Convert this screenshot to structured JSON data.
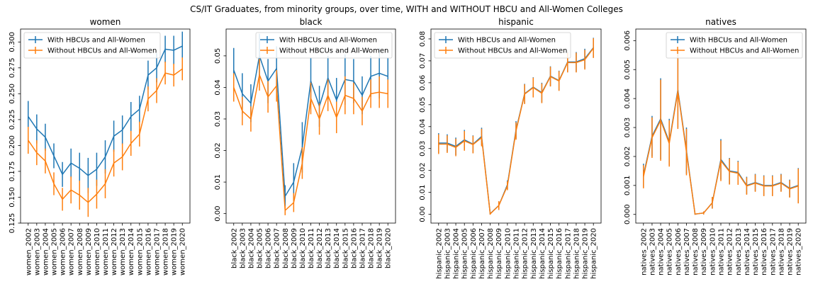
{
  "figure_title": "CS/IT Graduates, from minority groups, over time, WITH and WITHOUT HBCU and All-Women Colleges",
  "colors": {
    "with": "#1f77b4",
    "without": "#ff7f0e"
  },
  "chart_data": [
    {
      "type": "line",
      "title": "women",
      "categories": [
        "women_2002",
        "women_2003",
        "women_2004",
        "women_2005",
        "women_2006",
        "women_2007",
        "women_2008",
        "women_2009",
        "women_2010",
        "women_2011",
        "women_2012",
        "women_2013",
        "women_2014",
        "women_2015",
        "women_2016",
        "women_2017",
        "women_2018",
        "women_2019",
        "women_2020"
      ],
      "ylim": [
        0.125,
        0.3125
      ],
      "yticks": [
        0.125,
        0.15,
        0.175,
        0.2,
        0.225,
        0.25,
        0.275,
        0.3
      ],
      "ytick_labels": [
        "0.125",
        "0.150",
        "0.175",
        "0.200",
        "0.225",
        "0.250",
        "0.275",
        "0.300"
      ],
      "legend": "top-left",
      "series": [
        {
          "name": "With HBCUs and All-Women",
          "values": [
            0.228,
            0.216,
            0.208,
            0.19,
            0.172,
            0.183,
            0.178,
            0.171,
            0.177,
            0.189,
            0.209,
            0.215,
            0.228,
            0.235,
            0.268,
            0.275,
            0.293,
            0.292,
            0.296
          ],
          "errors": [
            0.015,
            0.014,
            0.013,
            0.012,
            0.012,
            0.014,
            0.015,
            0.017,
            0.016,
            0.016,
            0.015,
            0.014,
            0.014,
            0.013,
            0.014,
            0.014,
            0.013,
            0.014,
            0.014
          ]
        },
        {
          "name": "Without HBCUs and All-Women",
          "values": [
            0.205,
            0.193,
            0.185,
            0.163,
            0.148,
            0.157,
            0.152,
            0.145,
            0.153,
            0.163,
            0.183,
            0.189,
            0.202,
            0.211,
            0.245,
            0.253,
            0.27,
            0.268,
            0.274
          ],
          "errors": [
            0.013,
            0.012,
            0.012,
            0.011,
            0.011,
            0.013,
            0.014,
            0.014,
            0.014,
            0.014,
            0.013,
            0.013,
            0.012,
            0.012,
            0.012,
            0.012,
            0.011,
            0.011,
            0.011
          ]
        }
      ]
    },
    {
      "type": "line",
      "title": "black",
      "categories": [
        "black_2002",
        "black_2003",
        "black_2004",
        "black_2005",
        "black_2006",
        "black_2007",
        "black_2008",
        "black_2009",
        "black_2010",
        "black_2011",
        "black_2012",
        "black_2013",
        "black_2014",
        "black_2015",
        "black_2016",
        "black_2017",
        "black_2018",
        "black_2019",
        "black_2020"
      ],
      "ylim": [
        -0.003,
        0.0585
      ],
      "yticks": [
        0.0,
        0.01,
        0.02,
        0.03,
        0.04,
        0.05
      ],
      "ytick_labels": [
        "0.00",
        "0.01",
        "0.02",
        "0.03",
        "0.04",
        "0.05"
      ],
      "legend": "top-right",
      "series": [
        {
          "name": "With HBCUs and All-Women",
          "values": [
            0.0455,
            0.038,
            0.035,
            0.05,
            0.042,
            0.046,
            0.0055,
            0.01,
            0.021,
            0.042,
            0.034,
            0.043,
            0.036,
            0.0425,
            0.042,
            0.0375,
            0.0435,
            0.0445,
            0.0435
          ],
          "errors": [
            0.007,
            0.0065,
            0.006,
            0.007,
            0.007,
            0.007,
            0.0035,
            0.006,
            0.008,
            0.0075,
            0.0065,
            0.007,
            0.007,
            0.008,
            0.007,
            0.006,
            0.0065,
            0.008,
            0.006
          ]
        },
        {
          "name": "Without HBCUs and All-Women",
          "values": [
            0.04,
            0.0325,
            0.03,
            0.044,
            0.037,
            0.0405,
            0.001,
            0.0035,
            0.016,
            0.0365,
            0.03,
            0.0375,
            0.0305,
            0.0375,
            0.0365,
            0.0325,
            0.038,
            0.0385,
            0.038
          ],
          "errors": [
            0.0045,
            0.0045,
            0.004,
            0.005,
            0.005,
            0.005,
            0.0015,
            0.003,
            0.005,
            0.005,
            0.005,
            0.005,
            0.005,
            0.006,
            0.005,
            0.0045,
            0.0045,
            0.005,
            0.0045
          ]
        }
      ]
    },
    {
      "type": "line",
      "title": "hispanic",
      "categories": [
        "hispanic_2002",
        "hispanic_2003",
        "hispanic_2004",
        "hispanic_2005",
        "hispanic_2006",
        "hispanic_2007",
        "hispanic_2008",
        "hispanic_2009",
        "hispanic_2010",
        "hispanic_2011",
        "hispanic_2012",
        "hispanic_2013",
        "hispanic_2014",
        "hispanic_2015",
        "hispanic_2016",
        "hispanic_2017",
        "hispanic_2018",
        "hispanic_2019",
        "hispanic_2020"
      ],
      "ylim": [
        -0.004,
        0.0845
      ],
      "yticks": [
        0.0,
        0.01,
        0.02,
        0.03,
        0.04,
        0.05,
        0.06,
        0.07,
        0.08
      ],
      "ytick_labels": [
        "0.00",
        "0.01",
        "0.02",
        "0.03",
        "0.04",
        "0.05",
        "0.06",
        "0.07",
        "0.08"
      ],
      "legend": "top-left",
      "series": [
        {
          "name": "With HBCUs and All-Women",
          "values": [
            0.0325,
            0.0325,
            0.031,
            0.034,
            0.032,
            0.0355,
            0.0003,
            0.004,
            0.0135,
            0.0385,
            0.055,
            0.058,
            0.0555,
            0.063,
            0.061,
            0.0695,
            0.0695,
            0.071,
            0.076
          ],
          "errors": [
            0.0045,
            0.004,
            0.004,
            0.0045,
            0.004,
            0.004,
            0.0003,
            0.002,
            0.002,
            0.004,
            0.0045,
            0.0045,
            0.0045,
            0.0045,
            0.0045,
            0.0045,
            0.0045,
            0.0045,
            0.0045
          ]
        },
        {
          "name": "Without HBCUs and All-Women",
          "values": [
            0.032,
            0.032,
            0.0305,
            0.0335,
            0.0318,
            0.035,
            0.0002,
            0.004,
            0.013,
            0.038,
            0.0548,
            0.0578,
            0.0552,
            0.0628,
            0.0608,
            0.0692,
            0.0692,
            0.0705,
            0.0758
          ],
          "errors": [
            0.0045,
            0.004,
            0.004,
            0.0045,
            0.004,
            0.004,
            0.0003,
            0.002,
            0.002,
            0.004,
            0.0045,
            0.0045,
            0.0045,
            0.0045,
            0.0045,
            0.0045,
            0.0045,
            0.0045,
            0.0045
          ]
        }
      ]
    },
    {
      "type": "line",
      "title": "natives",
      "categories": [
        "natives_2002",
        "natives_2003",
        "natives_2004",
        "natives_2005",
        "natives_2006",
        "natives_2007",
        "natives_2008",
        "natives_2009",
        "natives_2010",
        "natives_2011",
        "natives_2012",
        "natives_2013",
        "natives_2014",
        "natives_2015",
        "natives_2016",
        "natives_2017",
        "natives_2018",
        "natives_2019",
        "natives_2020"
      ],
      "ylim": [
        -0.0003,
        0.0064
      ],
      "yticks": [
        0.0,
        0.001,
        0.002,
        0.003,
        0.004,
        0.005,
        0.006
      ],
      "ytick_labels": [
        "0.000",
        "0.001",
        "0.002",
        "0.003",
        "0.004",
        "0.005",
        "0.006"
      ],
      "legend": "top-right",
      "series": [
        {
          "name": "With HBCUs and All-Women",
          "values": [
            0.00135,
            0.0027,
            0.0033,
            0.0025,
            0.0043,
            0.0022,
            1e-05,
            5e-05,
            0.0004,
            0.0019,
            0.0015,
            0.00145,
            0.001,
            0.0011,
            0.001,
            0.001,
            0.0011,
            0.0009,
            0.001
          ],
          "errors": [
            0.0004,
            0.0007,
            0.0014,
            0.0008,
            0.0013,
            0.0008,
            2e-05,
            5e-05,
            0.0002,
            0.0007,
            0.00045,
            0.0004,
            0.0003,
            0.0003,
            0.00035,
            0.00035,
            0.0003,
            0.0003,
            0.0006
          ]
        },
        {
          "name": "Without HBCUs and All-Women",
          "values": [
            0.0013,
            0.00265,
            0.00325,
            0.00245,
            0.00425,
            0.00215,
            1e-05,
            5e-05,
            0.0004,
            0.00185,
            0.00148,
            0.00142,
            0.00098,
            0.00108,
            0.00098,
            0.00098,
            0.00108,
            0.00088,
            0.00098
          ],
          "errors": [
            0.0004,
            0.0007,
            0.0014,
            0.0008,
            0.0013,
            0.0008,
            2e-05,
            5e-05,
            0.0002,
            0.0007,
            0.00045,
            0.0004,
            0.0003,
            0.0003,
            0.00035,
            0.00035,
            0.0003,
            0.0003,
            0.0006
          ]
        }
      ]
    }
  ]
}
